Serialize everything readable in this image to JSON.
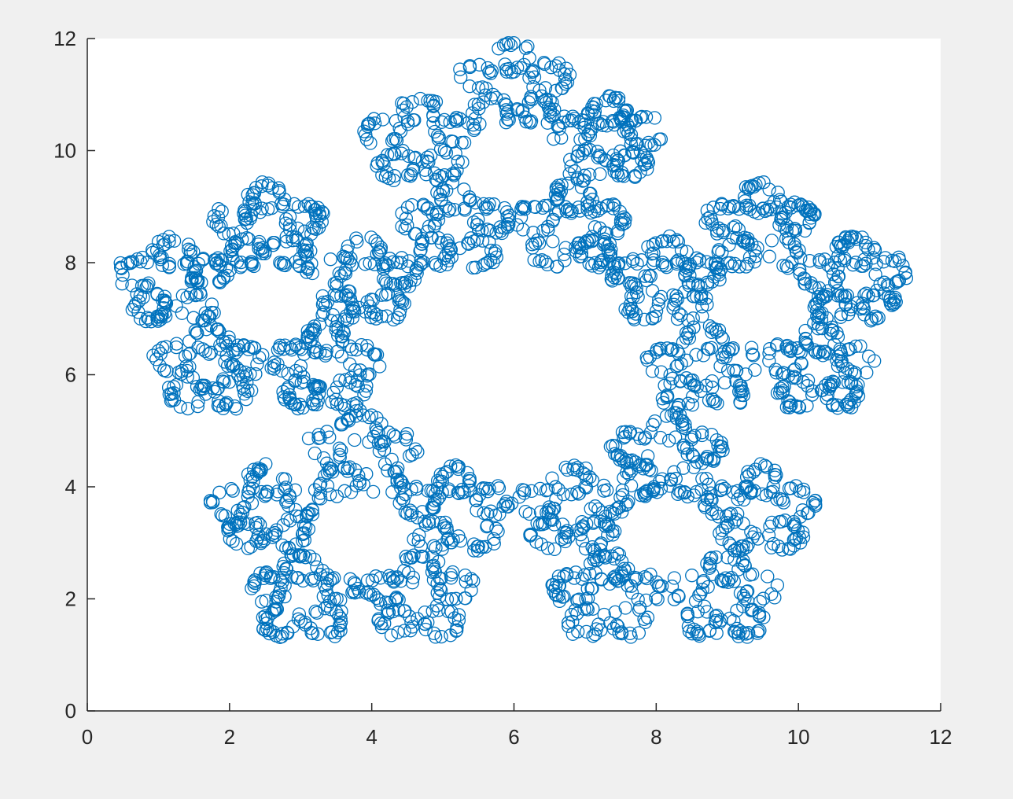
{
  "chart_data": {
    "type": "scatter",
    "title": "",
    "xlabel": "",
    "ylabel": "",
    "xlim": [
      0,
      12
    ],
    "ylim": [
      0,
      12
    ],
    "xticks": [
      "0",
      "2",
      "4",
      "6",
      "8",
      "10",
      "12"
    ],
    "yticks": [
      "0",
      "2",
      "4",
      "6",
      "8",
      "10",
      "12"
    ],
    "grid": false,
    "legend": "none",
    "marker": "circle-open",
    "colors": {
      "marker": "#0072BD",
      "background": "#f0f0f0",
      "axes_bg": "#ffffff",
      "axis": "#262626"
    },
    "series": [
      {
        "description_points": "pentaflake fractal point cloud (chaos game) centered at (6, 6.1)",
        "center": [
          6.0,
          6.1
        ],
        "outer_radius": 5.9,
        "levels": 3,
        "n_points": 3000
      }
    ]
  }
}
